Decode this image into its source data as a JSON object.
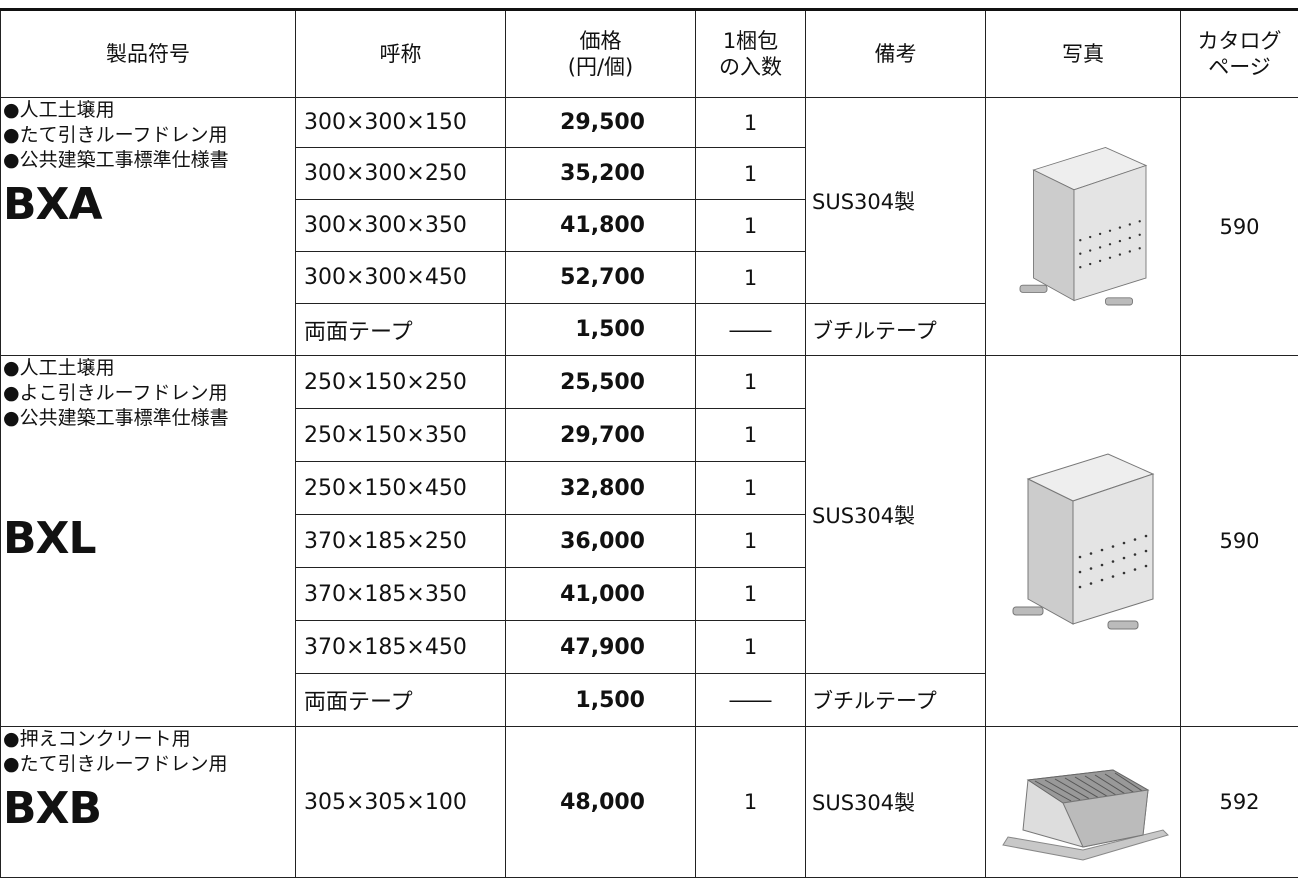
{
  "header": {
    "columns": [
      [
        "製品符号"
      ],
      [
        "呼称"
      ],
      [
        "価格",
        "(円/個)"
      ],
      [
        "1梱包",
        "の入数"
      ],
      [
        "備考"
      ],
      [
        "写真"
      ],
      [
        "カタログ",
        "ページ"
      ]
    ]
  },
  "groups": [
    {
      "notes": [
        "●人工土壌用",
        "●たて引きルーフドレン用",
        "●公共建築工事標準仕様書"
      ],
      "code": "BXA",
      "items": [
        {
          "size": "300×300×150",
          "price": "29,500",
          "qty": "1"
        },
        {
          "size": "300×300×250",
          "price": "35,200",
          "qty": "1"
        },
        {
          "size": "300×300×350",
          "price": "41,800",
          "qty": "1"
        },
        {
          "size": "300×300×450",
          "price": "52,700",
          "qty": "1"
        }
      ],
      "remark": "SUS304製",
      "extra": {
        "size": "両面テープ",
        "price": "1,500",
        "qty": "――",
        "remark": "ブチルテープ"
      },
      "page": "590"
    },
    {
      "notes": [
        "●人工土壌用",
        "●よこ引きルーフドレン用",
        "●公共建築工事標準仕様書"
      ],
      "code": "BXL",
      "items": [
        {
          "size": "250×150×250",
          "price": "25,500",
          "qty": "1"
        },
        {
          "size": "250×150×350",
          "price": "29,700",
          "qty": "1"
        },
        {
          "size": "250×150×450",
          "price": "32,800",
          "qty": "1"
        },
        {
          "size": "370×185×250",
          "price": "36,000",
          "qty": "1"
        },
        {
          "size": "370×185×350",
          "price": "41,000",
          "qty": "1"
        },
        {
          "size": "370×185×450",
          "price": "47,900",
          "qty": "1"
        }
      ],
      "remark": "SUS304製",
      "extra": {
        "size": "両面テープ",
        "price": "1,500",
        "qty": "――",
        "remark": "ブチルテープ"
      },
      "page": "590"
    },
    {
      "notes": [
        "●押えコンクリート用",
        "●たて引きルーフドレン用"
      ],
      "code": "BXB",
      "items": [
        {
          "size": "305×305×100",
          "price": "48,000",
          "qty": "1"
        }
      ],
      "remark": "SUS304製",
      "page": "592"
    }
  ]
}
